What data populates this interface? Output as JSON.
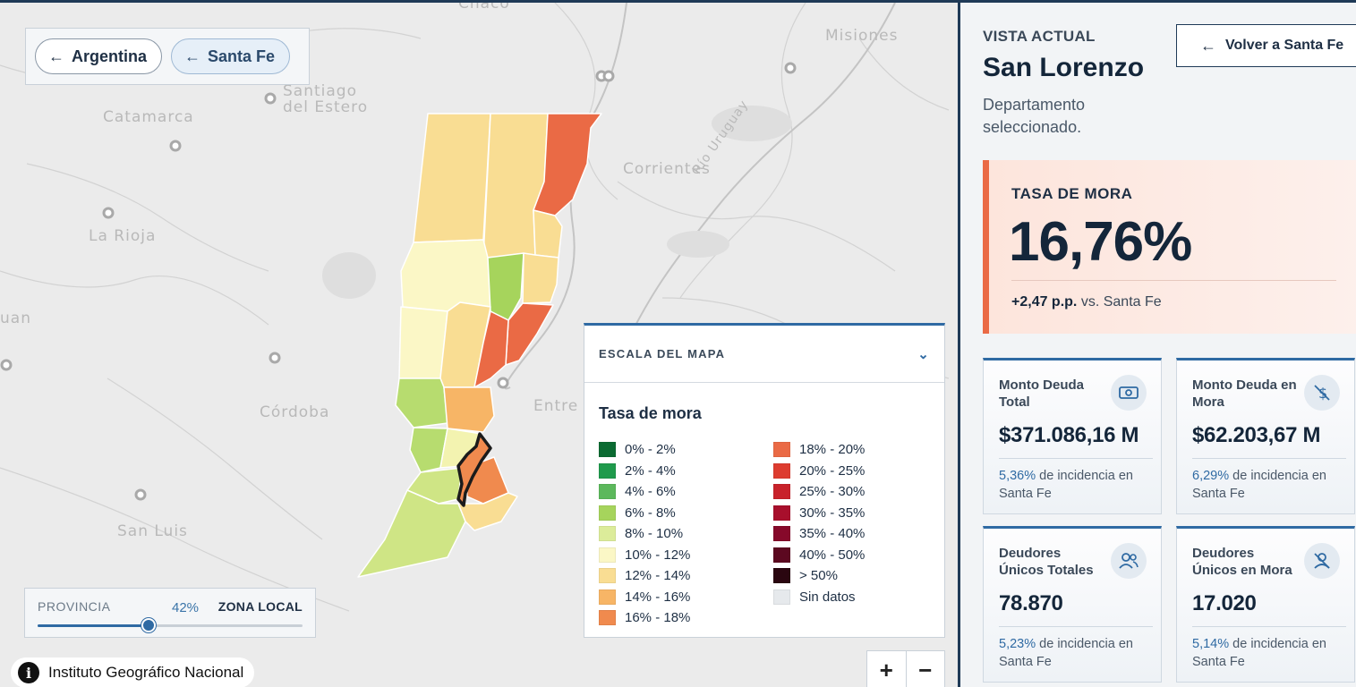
{
  "map": {
    "place_labels": [
      "Chaco",
      "Misiones",
      "Santiago\ndel Estero",
      "Catamarca",
      "Corrientes",
      "La Rioja",
      "uan",
      "Córdoba",
      "Entre",
      "San Luis",
      "Río Uruguay"
    ],
    "breadcrumbs": [
      {
        "label": "Argentina",
        "icon": "arrow-left-icon"
      },
      {
        "label": "Santa Fe",
        "icon": "arrow-left-icon"
      }
    ],
    "slider": {
      "left_label": "PROVINCIA",
      "right_label": "ZONA LOCAL",
      "value_label": "42%",
      "value": 0.42
    },
    "attribution": "Instituto Geográfico Nacional",
    "zoom": {
      "in": "+",
      "out": "−"
    }
  },
  "legend": {
    "header": "ESCALA DEL MAPA",
    "title": "Tasa de mora",
    "left": [
      {
        "label": "0% - 2%",
        "color": "#0b6b32"
      },
      {
        "label": "2% - 4%",
        "color": "#1f9a4c"
      },
      {
        "label": "4% - 6%",
        "color": "#5cb85c"
      },
      {
        "label": "6% - 8%",
        "color": "#a6d45c"
      },
      {
        "label": "8% - 10%",
        "color": "#dcec9a"
      },
      {
        "label": "10% - 12%",
        "color": "#fbf7c6"
      },
      {
        "label": "12% - 14%",
        "color": "#f9dd93"
      },
      {
        "label": "14% - 16%",
        "color": "#f7b566"
      },
      {
        "label": "16% - 18%",
        "color": "#f08a4e"
      }
    ],
    "right": [
      {
        "label": "18% - 20%",
        "color": "#ea6a45"
      },
      {
        "label": "20% - 25%",
        "color": "#dd3c2f"
      },
      {
        "label": "25% - 30%",
        "color": "#c8222a"
      },
      {
        "label": "30% - 35%",
        "color": "#a80f2c"
      },
      {
        "label": "35% - 40%",
        "color": "#86092a"
      },
      {
        "label": "40% - 50%",
        "color": "#5c0820"
      },
      {
        "label": "> 50%",
        "color": "#2a0610"
      },
      {
        "label": "Sin datos",
        "color": "#e6e9ec"
      }
    ]
  },
  "panel": {
    "view_label": "VISTA ACTUAL",
    "title": "San Lorenzo",
    "subtitle": "Departamento seleccionado.",
    "back_button": "Volver a Santa Fe",
    "mora": {
      "label": "TASA DE MORA",
      "value": "16,76%",
      "delta": "+2,47 p.p.",
      "delta_suffix": "vs. Santa Fe",
      "accent": "#ea6a45"
    },
    "cards": [
      {
        "label": "Monto Deuda Total",
        "value": "$371.086,16 M",
        "pct": "5,36%",
        "inc": "de incidencia en Santa Fe",
        "icon": "money-icon"
      },
      {
        "label": "Monto Deuda en Mora",
        "value": "$62.203,67 M",
        "pct": "6,29%",
        "inc": "de incidencia en Santa Fe",
        "icon": "money-off-icon"
      },
      {
        "label": "Deudores Únicos Totales",
        "value": "78.870",
        "pct": "5,23%",
        "inc": "de incidencia en Santa Fe",
        "icon": "users-icon"
      },
      {
        "label": "Deudores Únicos en Mora",
        "value": "17.020",
        "pct": "5,14%",
        "inc": "de incidencia en Santa Fe",
        "icon": "user-off-icon"
      }
    ]
  }
}
